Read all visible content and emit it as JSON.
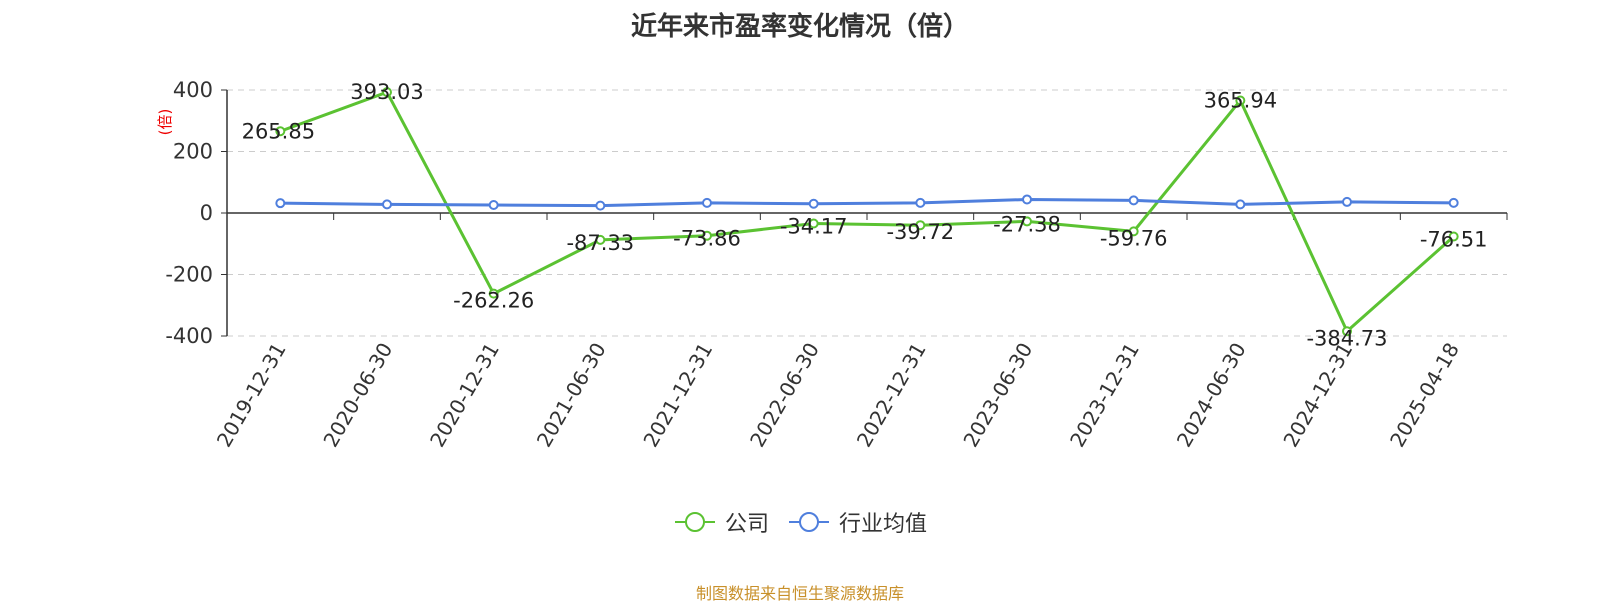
{
  "title": "近年来市盈率变化情况（倍）",
  "source_note": "制图数据来自恒生聚源数据库",
  "chart_data": {
    "type": "line",
    "title": "近年来市盈率变化情况（倍）",
    "ylabel": "(倍)",
    "ylim": [
      -400,
      400
    ],
    "yticks": [
      -400,
      -200,
      0,
      200,
      400
    ],
    "grid": true,
    "legend_position": "bottom",
    "categories": [
      "2019-12-31",
      "2020-06-30",
      "2020-12-31",
      "2021-06-30",
      "2021-12-31",
      "2022-06-30",
      "2022-12-31",
      "2023-06-30",
      "2023-12-31",
      "2024-06-30",
      "2024-12-31",
      "2025-04-18"
    ],
    "series": [
      {
        "name": "公司",
        "color": "#5bc232",
        "values": [
          265.85,
          393.03,
          -262.26,
          -87.33,
          -73.86,
          -34.17,
          -39.72,
          -27.38,
          -59.76,
          365.94,
          -384.73,
          -76.51
        ],
        "labels": [
          "265.85",
          "393.03",
          "-262.26",
          "-87.33",
          "-73.86",
          "-34.17",
          "-39.72",
          "-27.38",
          "-59.76",
          "365.94",
          "-384.73",
          "-76.51"
        ]
      },
      {
        "name": "行业均值",
        "color": "#4f7fdd",
        "values": [
          32,
          28,
          26,
          24,
          33,
          30,
          33,
          44,
          41,
          28,
          36,
          33
        ]
      }
    ]
  }
}
